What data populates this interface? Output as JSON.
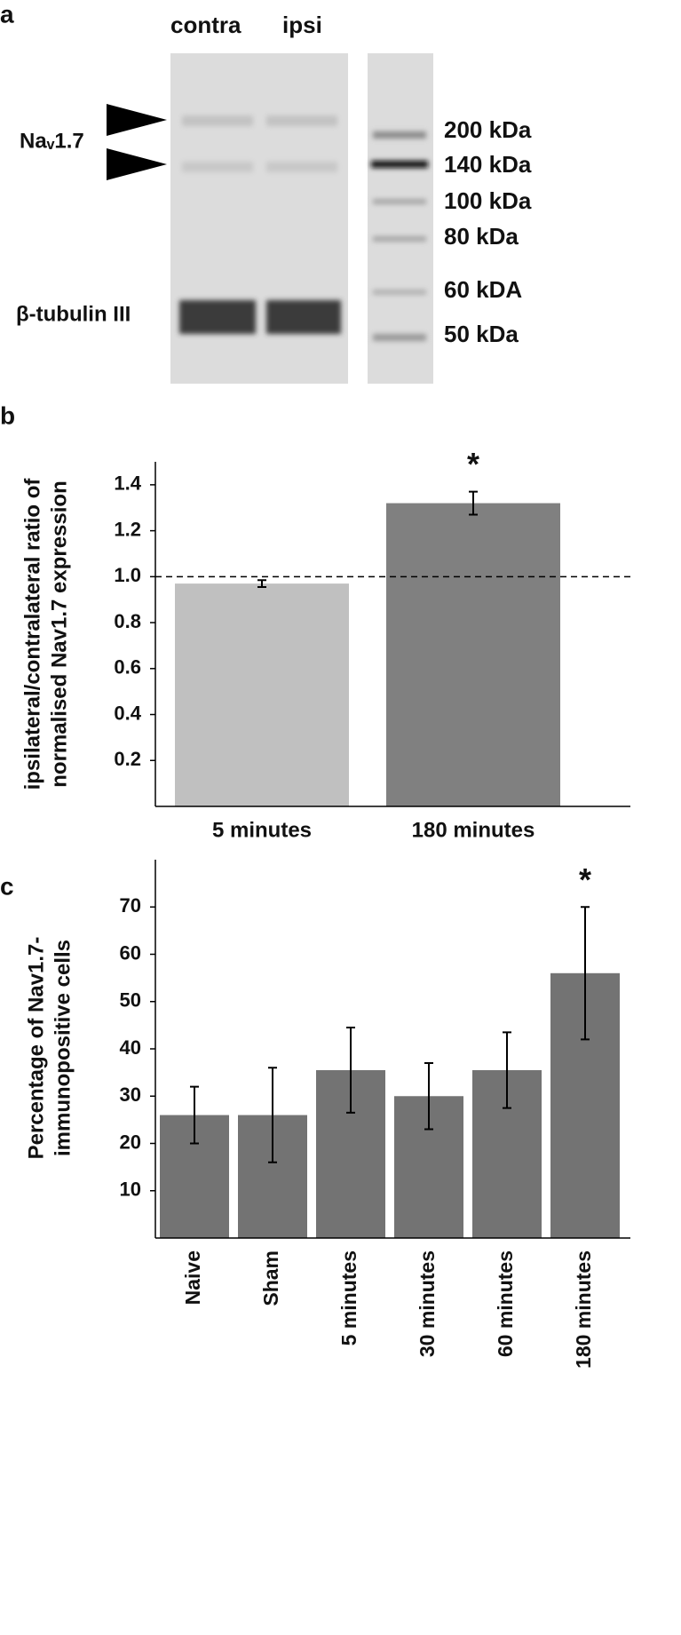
{
  "panel_a": {
    "label": "a",
    "lanes": [
      "contra",
      "ipsi"
    ],
    "bands": [
      "Naᵥ1.7",
      "β-tubulin III"
    ],
    "markers": [
      "200 kDa",
      "140 kDa",
      "100 kDa",
      "80 kDa",
      "60 kDA",
      "50 kDa"
    ]
  },
  "chart_data": [
    {
      "type": "bar",
      "panel": "b",
      "ylabel": [
        "ipsilateral/contralateral ratio of",
        "normalised Nav1.7 expression"
      ],
      "categories": [
        "5 minutes",
        "180 minutes"
      ],
      "values": [
        0.97,
        1.32
      ],
      "errors": [
        0.015,
        0.05
      ],
      "colors": [
        "#c0c0c0",
        "#808080"
      ],
      "significance": [
        null,
        "*"
      ],
      "reference_line": {
        "value": 1,
        "style": "dashed"
      },
      "ylim": [
        0,
        1.5
      ],
      "yticks": [
        0.2,
        0.4,
        0.6,
        0.8,
        {
          "value": 1,
          "label": "1.0"
        },
        1.2,
        1.4
      ]
    },
    {
      "type": "bar",
      "panel": "c",
      "ylabel": [
        "Percentage of Nav1.7-",
        "immunopositive cells"
      ],
      "categories": [
        "Naive",
        "Sham",
        "5 minutes",
        "30 minutes",
        "60 minutes",
        "180 minutes"
      ],
      "values": [
        26,
        26,
        35.5,
        30,
        35.5,
        56
      ],
      "errors": [
        6,
        10,
        9,
        7,
        8,
        14
      ],
      "colors": [
        "#737373",
        "#737373",
        "#737373",
        "#737373",
        "#737373",
        "#737373"
      ],
      "significance": [
        null,
        null,
        null,
        null,
        null,
        "*"
      ],
      "ylim": [
        0,
        80
      ],
      "yticks": [
        10,
        20,
        30,
        40,
        50,
        60,
        70
      ]
    }
  ]
}
